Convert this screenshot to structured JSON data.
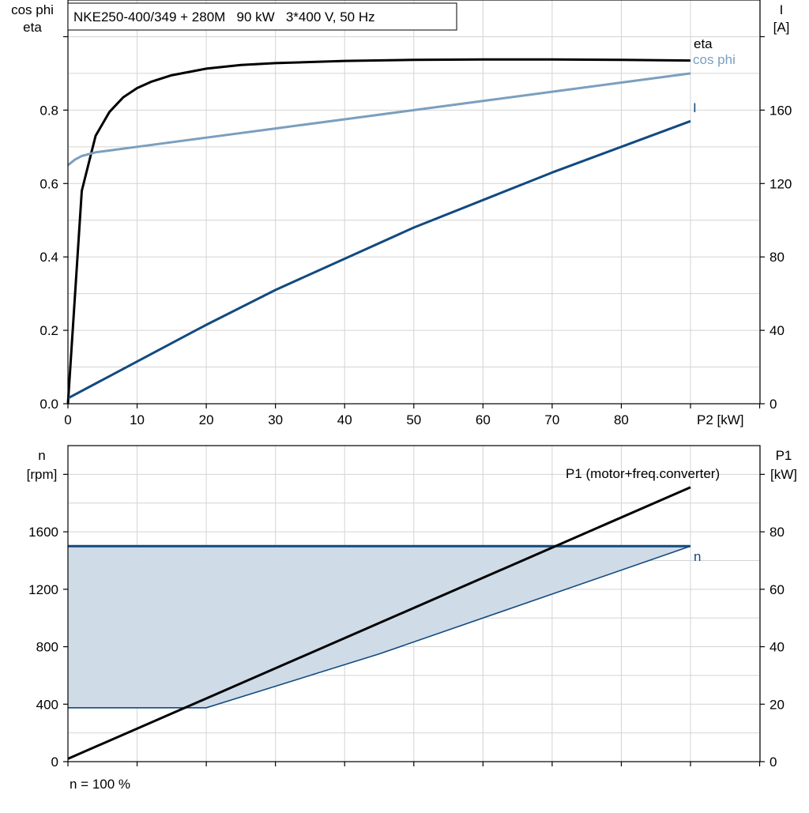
{
  "chart_data": [
    {
      "type": "line",
      "title": "NKE250-400/349 + 280M   90 kW   3*400 V, 50 Hz",
      "xlabel": "P2 [kW]",
      "ylabel_left_1": "cos phi",
      "ylabel_left_2": "eta",
      "ylabel_right_1": "I",
      "ylabel_right_2": "[A]",
      "xlim": [
        0,
        100
      ],
      "xticks": [
        0,
        10,
        20,
        30,
        40,
        50,
        60,
        70,
        80
      ],
      "ylim_left": [
        0,
        1.1
      ],
      "yticks_left": [
        "0.0",
        "0.2",
        "0.4",
        "0.6",
        "0.8"
      ],
      "ylim_right": [
        0,
        220
      ],
      "yticks_right": [
        "0",
        "40",
        "80",
        "120",
        "160"
      ],
      "grid": true,
      "series": [
        {
          "name": "eta",
          "axis": "left",
          "color": "#000000",
          "x": [
            0,
            2,
            4,
            6,
            8,
            10,
            12,
            15,
            20,
            25,
            30,
            40,
            50,
            60,
            70,
            80,
            90
          ],
          "y": [
            0.0,
            0.58,
            0.73,
            0.795,
            0.835,
            0.86,
            0.877,
            0.895,
            0.913,
            0.923,
            0.928,
            0.934,
            0.937,
            0.938,
            0.938,
            0.937,
            0.935
          ]
        },
        {
          "name": "cos phi",
          "axis": "left",
          "color": "#7b9fbe",
          "x": [
            0,
            1,
            2,
            4,
            6,
            10,
            20,
            30,
            40,
            50,
            60,
            70,
            80,
            90
          ],
          "y": [
            0.65,
            0.665,
            0.675,
            0.685,
            0.69,
            0.7,
            0.725,
            0.75,
            0.775,
            0.8,
            0.825,
            0.85,
            0.875,
            0.9
          ]
        },
        {
          "name": "I",
          "axis": "right",
          "color": "#124a7f",
          "x": [
            0,
            10,
            20,
            30,
            40,
            50,
            60,
            70,
            80,
            90
          ],
          "y": [
            3,
            23,
            43,
            62,
            79,
            96,
            111,
            126,
            140,
            154
          ]
        }
      ]
    },
    {
      "type": "line",
      "ylabel_left_1": "n",
      "ylabel_left_2": "[rpm]",
      "ylabel_right_1": "P1",
      "ylabel_right_2": "[kW]",
      "xlim": [
        0,
        100
      ],
      "ylim_left": [
        0,
        2200
      ],
      "yticks_left": [
        "0",
        "400",
        "800",
        "1200",
        "1600"
      ],
      "ylim_right": [
        0,
        110
      ],
      "yticks_right": [
        "0",
        "20",
        "40",
        "60",
        "80"
      ],
      "grid": true,
      "shaded_region": {
        "color": "#cfdbe7",
        "upper": {
          "x": [
            0,
            90
          ],
          "y": [
            1500,
            1500
          ]
        },
        "lower": {
          "x": [
            0,
            20,
            45,
            90
          ],
          "y": [
            375,
            375,
            750,
            1500
          ]
        }
      },
      "series": [
        {
          "name": "n",
          "axis": "left",
          "color": "#124a7f",
          "x": [
            0,
            90
          ],
          "y": [
            1500,
            1500
          ]
        },
        {
          "name": "P1 (motor+freq.converter)",
          "axis": "right",
          "color": "#000000",
          "x": [
            0,
            90
          ],
          "y": [
            1,
            95.5
          ]
        }
      ],
      "annotation": "n = 100 %"
    }
  ]
}
